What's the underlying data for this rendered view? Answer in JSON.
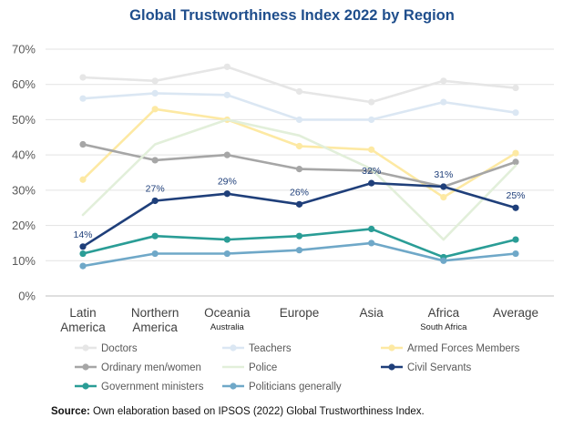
{
  "chart_data": {
    "type": "line",
    "title": "Global Trustworthiness Index 2022 by Region",
    "categories": [
      {
        "label": "Latin America",
        "lines": [
          "Latin",
          "America"
        ],
        "sub": ""
      },
      {
        "label": "Northern America",
        "lines": [
          "Northern",
          "America"
        ],
        "sub": ""
      },
      {
        "label": "Oceania",
        "lines": [
          "Oceania"
        ],
        "sub": "Australia"
      },
      {
        "label": "Europe",
        "lines": [
          "Europe"
        ],
        "sub": ""
      },
      {
        "label": "Asia",
        "lines": [
          "Asia"
        ],
        "sub": ""
      },
      {
        "label": "Africa",
        "lines": [
          "Africa"
        ],
        "sub": "South Africa"
      },
      {
        "label": "Average",
        "lines": [
          "Average"
        ],
        "sub": ""
      }
    ],
    "ylim": [
      0,
      70
    ],
    "yticks": [
      0,
      10,
      20,
      30,
      40,
      50,
      60,
      70
    ],
    "ytick_labels": [
      "0%",
      "10%",
      "20%",
      "30%",
      "40%",
      "50%",
      "60%",
      "70%"
    ],
    "grid": true,
    "series": [
      {
        "name": "Doctors",
        "color": "#e6e6e6",
        "markers": true,
        "values": [
          62,
          61,
          65,
          58,
          55,
          61,
          59
        ]
      },
      {
        "name": "Teachers",
        "color": "#dbe7f3",
        "markers": true,
        "values": [
          56,
          57.5,
          57,
          50,
          50,
          55,
          52
        ]
      },
      {
        "name": "Armed Forces Members",
        "color": "#fde9a3",
        "markers": true,
        "values": [
          33,
          53,
          50,
          42.5,
          41.5,
          28,
          40.5
        ]
      },
      {
        "name": "Ordinary men/women",
        "color": "#a6a6a6",
        "markers": true,
        "values": [
          43,
          38.5,
          40,
          36,
          35.5,
          31,
          38
        ]
      },
      {
        "name": "Police",
        "color": "#e2efda",
        "markers": false,
        "values": [
          23,
          43,
          50,
          45.5,
          36,
          16,
          37
        ]
      },
      {
        "name": "Civil Servants",
        "color": "#1f3f7a",
        "markers": true,
        "values": [
          14,
          27,
          29,
          26,
          32,
          31,
          25
        ],
        "data_labels": [
          "14%",
          "27%",
          "29%",
          "26%",
          "32%",
          "31%",
          "25%"
        ]
      },
      {
        "name": "Government ministers",
        "color": "#2a9d96",
        "markers": true,
        "values": [
          12,
          17,
          16,
          17,
          19,
          11,
          16
        ]
      },
      {
        "name": "Politicians generally",
        "color": "#6fa8c8",
        "markers": true,
        "values": [
          8.5,
          12,
          12,
          13,
          15,
          10,
          12
        ]
      }
    ],
    "legend_position": "bottom"
  },
  "source": {
    "label": "Source:",
    "text": " Own elaboration based on IPSOS (2022) Global Trustworthiness Index."
  }
}
